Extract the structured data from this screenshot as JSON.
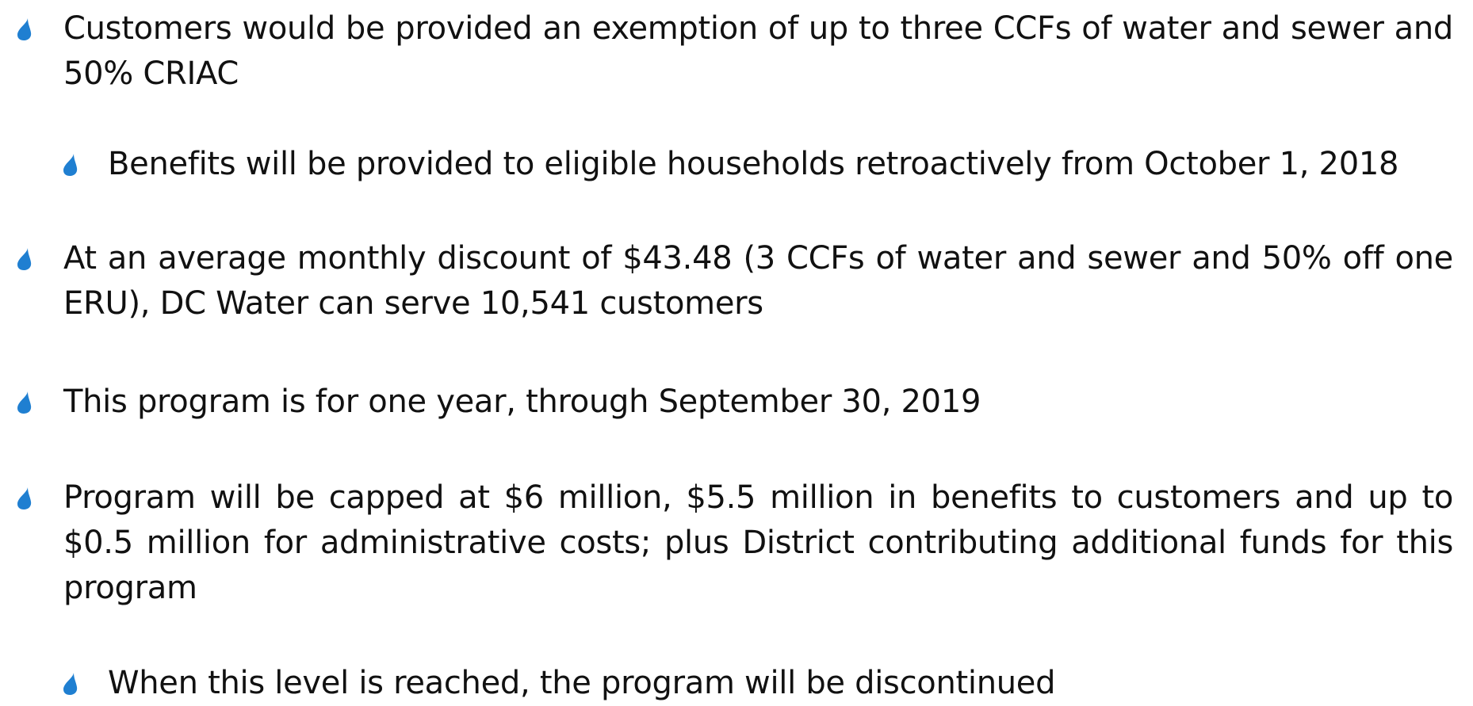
{
  "bullets": [
    {
      "level": 1,
      "text": "Customers would be provided an exemption of up to three CCFs of water and sewer and 50% CRIAC"
    },
    {
      "level": 2,
      "text": "Benefits will be provided to eligible households retroactively from October 1, 2018"
    },
    {
      "level": 1,
      "text": "At an average monthly discount of $43.48 (3 CCFs of water and sewer and 50% off one ERU), DC Water can serve 10,541 customers"
    },
    {
      "level": 1,
      "text": "This program is for one year, through September 30, 2019"
    },
    {
      "level": 1,
      "text": "Program will be capped at $6 million, $5.5 million in benefits to customers and up to $0.5 million for administrative costs; plus District contributing additional funds for this program"
    },
    {
      "level": 2,
      "text": "When this level is reached, the program will be discontinued"
    }
  ]
}
